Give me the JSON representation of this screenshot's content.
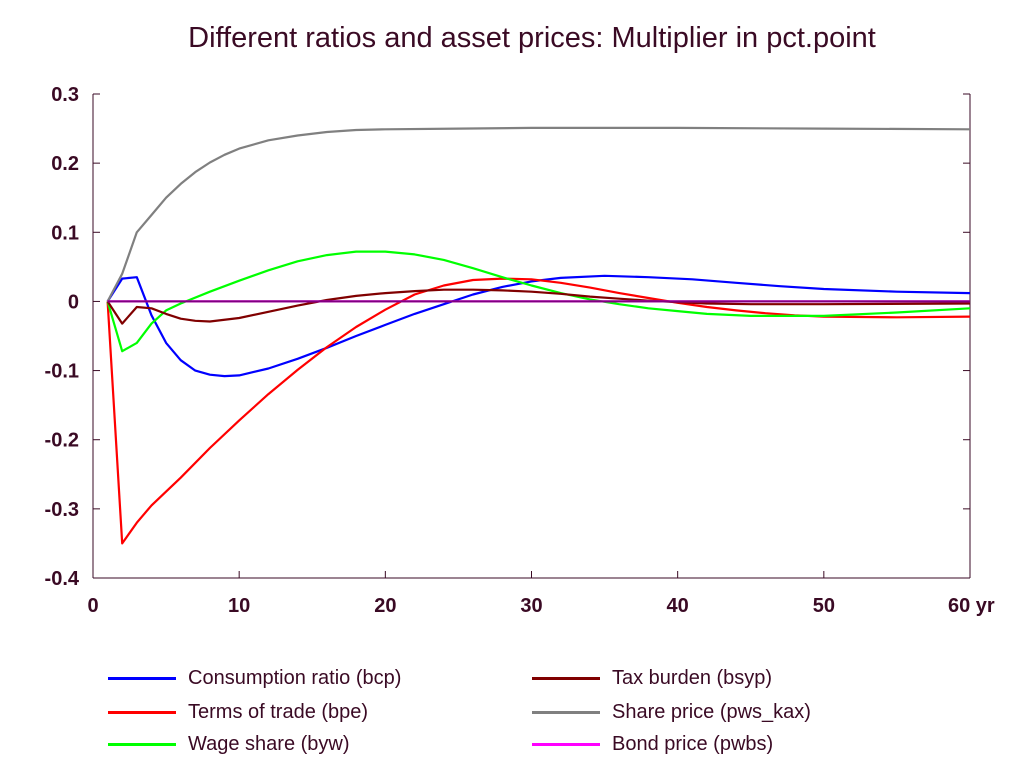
{
  "chart_data": {
    "type": "line",
    "title": "Different ratios and asset prices: Multiplier in pct.point",
    "xlabel": "",
    "ylabel": "",
    "xlim": [
      0,
      60
    ],
    "ylim": [
      -0.4,
      0.3
    ],
    "x_ticks": [
      0,
      10,
      20,
      30,
      40,
      50,
      60
    ],
    "x_tick_labels": [
      "0",
      "10",
      "20",
      "30",
      "40",
      "50",
      "60 yr"
    ],
    "y_ticks": [
      0.3,
      0.2,
      0.1,
      0,
      -0.1,
      -0.2,
      -0.3,
      -0.4
    ],
    "y_tick_labels": [
      "0.3",
      "0.2",
      "0.1",
      "0",
      "-0.1",
      "-0.2",
      "-0.3",
      "-0.4"
    ],
    "grid": false,
    "legend_position": "bottom",
    "series": [
      {
        "name": "Consumption ratio (bcp)",
        "color": "#0000ff",
        "points": [
          [
            1,
            0
          ],
          [
            2,
            0.033
          ],
          [
            3,
            0.035
          ],
          [
            4,
            -0.02
          ],
          [
            5,
            -0.06
          ],
          [
            6,
            -0.085
          ],
          [
            7,
            -0.1
          ],
          [
            8,
            -0.106
          ],
          [
            9,
            -0.108
          ],
          [
            10,
            -0.107
          ],
          [
            12,
            -0.097
          ],
          [
            14,
            -0.083
          ],
          [
            16,
            -0.067
          ],
          [
            18,
            -0.05
          ],
          [
            20,
            -0.034
          ],
          [
            22,
            -0.018
          ],
          [
            24,
            -0.004
          ],
          [
            26,
            0.01
          ],
          [
            28,
            0.021
          ],
          [
            30,
            0.029
          ],
          [
            32,
            0.034
          ],
          [
            35,
            0.037
          ],
          [
            38,
            0.035
          ],
          [
            41,
            0.032
          ],
          [
            44,
            0.027
          ],
          [
            47,
            0.022
          ],
          [
            50,
            0.018
          ],
          [
            55,
            0.014
          ],
          [
            60,
            0.012
          ]
        ]
      },
      {
        "name": "Terms of trade (bpe)",
        "color": "#ff0000",
        "points": [
          [
            1,
            0
          ],
          [
            2,
            -0.35
          ],
          [
            3,
            -0.32
          ],
          [
            4,
            -0.295
          ],
          [
            6,
            -0.255
          ],
          [
            8,
            -0.212
          ],
          [
            10,
            -0.172
          ],
          [
            12,
            -0.134
          ],
          [
            14,
            -0.099
          ],
          [
            16,
            -0.066
          ],
          [
            18,
            -0.037
          ],
          [
            20,
            -0.012
          ],
          [
            22,
            0.01
          ],
          [
            24,
            0.023
          ],
          [
            26,
            0.031
          ],
          [
            28,
            0.033
          ],
          [
            30,
            0.032
          ],
          [
            32,
            0.027
          ],
          [
            34,
            0.02
          ],
          [
            36,
            0.012
          ],
          [
            38,
            0.005
          ],
          [
            40,
            -0.002
          ],
          [
            42,
            -0.008
          ],
          [
            44,
            -0.013
          ],
          [
            46,
            -0.017
          ],
          [
            48,
            -0.02
          ],
          [
            50,
            -0.022
          ],
          [
            55,
            -0.023
          ],
          [
            60,
            -0.022
          ]
        ]
      },
      {
        "name": "Wage share (byw)",
        "color": "#00ff00",
        "points": [
          [
            1,
            0
          ],
          [
            2,
            -0.072
          ],
          [
            3,
            -0.06
          ],
          [
            4,
            -0.032
          ],
          [
            5,
            -0.013
          ],
          [
            6,
            -0.003
          ],
          [
            8,
            0.014
          ],
          [
            10,
            0.03
          ],
          [
            12,
            0.045
          ],
          [
            14,
            0.058
          ],
          [
            16,
            0.067
          ],
          [
            18,
            0.072
          ],
          [
            20,
            0.072
          ],
          [
            22,
            0.068
          ],
          [
            24,
            0.06
          ],
          [
            26,
            0.048
          ],
          [
            28,
            0.035
          ],
          [
            30,
            0.023
          ],
          [
            32,
            0.012
          ],
          [
            34,
            0.003
          ],
          [
            36,
            -0.004
          ],
          [
            38,
            -0.01
          ],
          [
            40,
            -0.014
          ],
          [
            42,
            -0.018
          ],
          [
            45,
            -0.021
          ],
          [
            50,
            -0.021
          ],
          [
            55,
            -0.016
          ],
          [
            60,
            -0.01
          ]
        ]
      },
      {
        "name": "Tax burden (bsyp)",
        "color": "#800000",
        "points": [
          [
            1,
            0
          ],
          [
            2,
            -0.032
          ],
          [
            3,
            -0.008
          ],
          [
            4,
            -0.01
          ],
          [
            5,
            -0.018
          ],
          [
            6,
            -0.025
          ],
          [
            7,
            -0.028
          ],
          [
            8,
            -0.029
          ],
          [
            10,
            -0.024
          ],
          [
            12,
            -0.015
          ],
          [
            14,
            -0.006
          ],
          [
            16,
            0.002
          ],
          [
            18,
            0.008
          ],
          [
            20,
            0.012
          ],
          [
            22,
            0.015
          ],
          [
            24,
            0.017
          ],
          [
            26,
            0.017
          ],
          [
            28,
            0.016
          ],
          [
            30,
            0.014
          ],
          [
            32,
            0.011
          ],
          [
            34,
            0.007
          ],
          [
            36,
            0.004
          ],
          [
            38,
            0.001
          ],
          [
            40,
            -0.001
          ],
          [
            42,
            -0.003
          ],
          [
            45,
            -0.004
          ],
          [
            50,
            -0.004
          ],
          [
            60,
            -0.003
          ]
        ]
      },
      {
        "name": "Share price (pws_kax)",
        "color": "#808080",
        "points": [
          [
            1,
            0
          ],
          [
            2,
            0.04
          ],
          [
            3,
            0.1
          ],
          [
            4,
            0.125
          ],
          [
            5,
            0.15
          ],
          [
            6,
            0.17
          ],
          [
            7,
            0.187
          ],
          [
            8,
            0.201
          ],
          [
            9,
            0.212
          ],
          [
            10,
            0.221
          ],
          [
            12,
            0.233
          ],
          [
            14,
            0.24
          ],
          [
            16,
            0.245
          ],
          [
            18,
            0.248
          ],
          [
            20,
            0.249
          ],
          [
            25,
            0.25
          ],
          [
            30,
            0.251
          ],
          [
            40,
            0.251
          ],
          [
            50,
            0.25
          ],
          [
            60,
            0.249
          ]
        ]
      },
      {
        "name": "Bond price (pwbs)",
        "color": "#ff00ff",
        "points": [
          [
            1,
            0
          ],
          [
            60,
            0
          ]
        ]
      }
    ]
  },
  "zero_line_color": "#800080",
  "axis_color": "#3a0a24"
}
